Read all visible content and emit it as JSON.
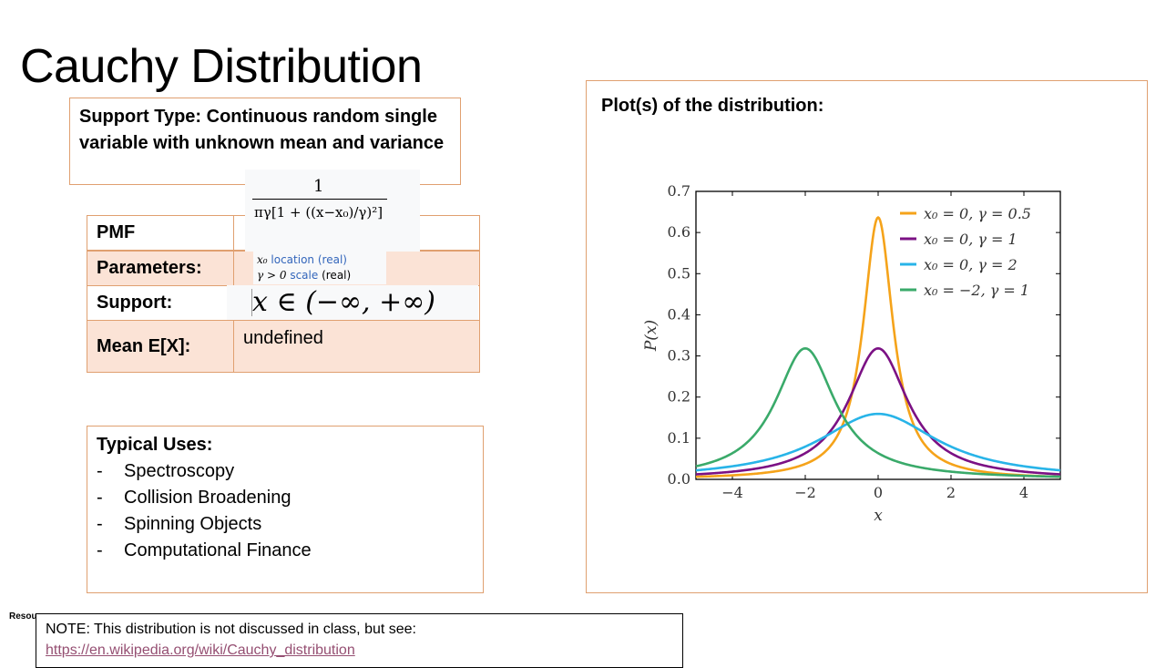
{
  "title": "Cauchy Distribution",
  "support_type": "Support Type: Continuous random single variable with unknown mean and variance",
  "table": {
    "pmf_label": "PMF",
    "parameters_label": "Parameters:",
    "support_label": "Support:",
    "mean_label": "Mean E[X]:",
    "mean_value": "undefined"
  },
  "pmf_formula": {
    "numerator": "1",
    "denominator": "πγ[1 + ((x−x₀)/γ)²]"
  },
  "parameters": {
    "p1_symbol": "x₀",
    "p1_desc": "location",
    "p1_type": "(real)",
    "p2_symbol": "γ > 0",
    "p2_desc": "scale",
    "p2_type": "(real)"
  },
  "support_formula": "x ∈ (−∞, +∞)",
  "uses": {
    "heading": "Typical Uses:",
    "items": [
      "Spectroscopy",
      "Collision Broadening",
      "Spinning Objects",
      "Computational Finance"
    ]
  },
  "plot_heading": "Plot(s) of the distribution:",
  "note": {
    "text": "NOTE:  This distribution is not discussed in class, but see:",
    "link": "https://en.wikipedia.org/wiki/Cauchy_distribution"
  },
  "resource_label": "Resou",
  "chart_data": {
    "type": "line",
    "xlabel": "x",
    "ylabel": "P(x)",
    "xlim": [
      -5,
      5
    ],
    "ylim": [
      0,
      0.7
    ],
    "xticks": [
      -4,
      -2,
      0,
      2,
      4
    ],
    "xtick_labels": [
      "−4",
      "−2",
      "0",
      "2",
      "4"
    ],
    "yticks": [
      0,
      0.1,
      0.2,
      0.3,
      0.4,
      0.5,
      0.6,
      0.7
    ],
    "ytick_labels": [
      "0.0",
      "0.1",
      "0.2",
      "0.3",
      "0.4",
      "0.5",
      "0.6",
      "0.7"
    ],
    "legend_position": "top-right",
    "series": [
      {
        "name": "x₀ = 0, γ = 0.5",
        "x0": 0,
        "gamma": 0.5,
        "color": "#f5a31a"
      },
      {
        "name": "x₀ = 0, γ = 1",
        "x0": 0,
        "gamma": 1,
        "color": "#7b1184"
      },
      {
        "name": "x₀ = 0, γ = 2",
        "x0": 0,
        "gamma": 2,
        "color": "#28b4e8"
      },
      {
        "name": "x₀ = −2, γ = 1",
        "x0": -2,
        "gamma": 1,
        "color": "#3aaa6a"
      }
    ]
  }
}
